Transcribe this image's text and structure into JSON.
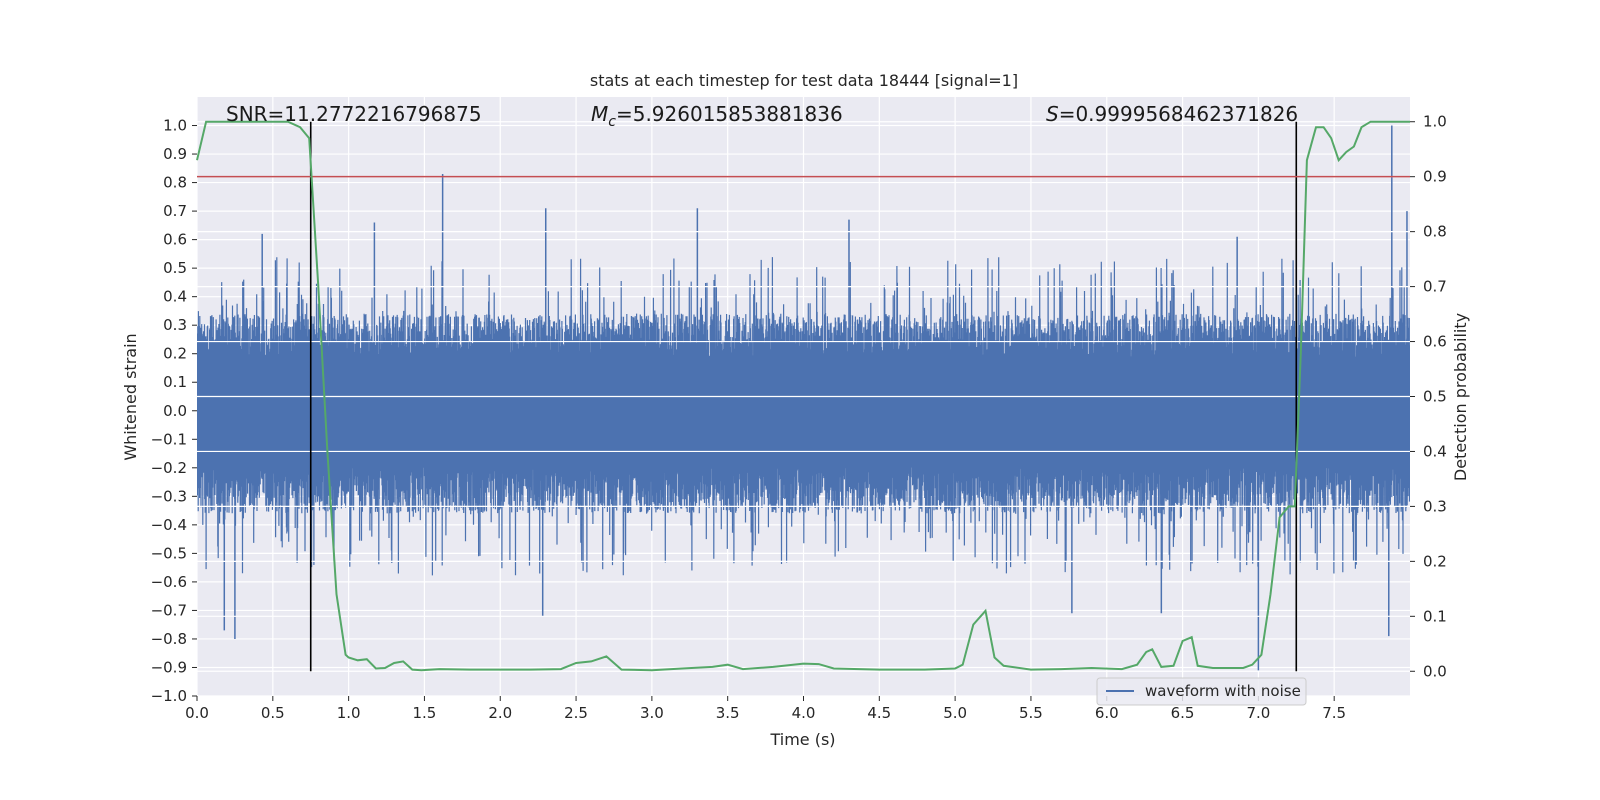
{
  "chart_data": {
    "type": "line",
    "title": "stats at each timestep for test data 18444 [signal=1]",
    "xlabel": "Time (s)",
    "ylabel": "Whitened strain",
    "y2label": "Detection probability",
    "xlim": [
      0,
      8
    ],
    "ylim": [
      -1.0,
      1.1
    ],
    "y2lim": [
      -0.045,
      1.045
    ],
    "xticks": [
      "0.0",
      "0.5",
      "1.0",
      "1.5",
      "2.0",
      "2.5",
      "3.0",
      "3.5",
      "4.0",
      "4.5",
      "5.0",
      "5.5",
      "6.0",
      "6.5",
      "7.0",
      "7.5"
    ],
    "yticks": [
      "-1.0",
      "-0.9",
      "-0.8",
      "-0.7",
      "-0.6",
      "-0.5",
      "-0.4",
      "-0.3",
      "-0.2",
      "-0.1",
      "0.0",
      "0.1",
      "0.2",
      "0.3",
      "0.4",
      "0.5",
      "0.6",
      "0.7",
      "0.8",
      "0.9",
      "1.0"
    ],
    "y2ticks": [
      "0.0",
      "0.1",
      "0.2",
      "0.3",
      "0.4",
      "0.5",
      "0.6",
      "0.7",
      "0.8",
      "0.9",
      "1.0"
    ],
    "grid": true,
    "legend": {
      "position": "lower-right",
      "entries": [
        "waveform with noise"
      ]
    },
    "annotations": {
      "snr": "SNR=11.2772216796875",
      "mc_symbol": "M",
      "mc_sub": "c",
      "mc_value": "=5.926015853881836",
      "s_symbol": "S",
      "s_value": "=0.9999568462371826"
    },
    "threshold": {
      "axis": "right",
      "value": 0.9,
      "color": "#c44e52"
    },
    "vertical_markers": [
      0.75,
      7.25
    ],
    "series": [
      {
        "name": "waveform with noise",
        "axis": "left",
        "color": "#4c72b0",
        "envelope_typical": [
          0.34,
          -0.36
        ],
        "envelope_max": [
          1.0,
          -0.91
        ],
        "peaks": [
          {
            "x": 0.43,
            "y": 0.62
          },
          {
            "x": 1.62,
            "y": 0.83
          },
          {
            "x": 1.17,
            "y": 0.66
          },
          {
            "x": 2.3,
            "y": 0.71
          },
          {
            "x": 3.3,
            "y": 0.71
          },
          {
            "x": 4.3,
            "y": 0.67
          },
          {
            "x": 7.88,
            "y": 1.0
          },
          {
            "x": 7.98,
            "y": 0.7
          },
          {
            "x": 6.86,
            "y": 0.61
          },
          {
            "x": 0.18,
            "y": -0.77
          },
          {
            "x": 0.25,
            "y": -0.8
          },
          {
            "x": 2.28,
            "y": -0.72
          },
          {
            "x": 5.77,
            "y": -0.71
          },
          {
            "x": 6.36,
            "y": -0.71
          },
          {
            "x": 7.0,
            "y": -0.91
          },
          {
            "x": 7.86,
            "y": -0.79
          }
        ]
      },
      {
        "name": "Detection probability",
        "axis": "right",
        "color": "#55a868",
        "x": [
          0,
          0.06,
          0.1,
          0.2,
          0.3,
          0.4,
          0.5,
          0.6,
          0.68,
          0.74,
          0.8,
          0.86,
          0.92,
          0.98,
          1.0,
          1.06,
          1.12,
          1.18,
          1.24,
          1.3,
          1.36,
          1.42,
          1.48,
          1.6,
          1.8,
          2.0,
          2.2,
          2.4,
          2.5,
          2.6,
          2.7,
          2.8,
          3.0,
          3.2,
          3.4,
          3.5,
          3.6,
          3.8,
          4.0,
          4.1,
          4.2,
          4.5,
          4.8,
          5.0,
          5.05,
          5.12,
          5.2,
          5.26,
          5.32,
          5.5,
          5.7,
          5.9,
          6.1,
          6.2,
          6.26,
          6.3,
          6.36,
          6.44,
          6.5,
          6.56,
          6.6,
          6.7,
          6.9,
          6.96,
          7.02,
          7.08,
          7.14,
          7.2,
          7.24,
          7.28,
          7.32,
          7.38,
          7.43,
          7.48,
          7.53,
          7.58,
          7.63,
          7.68,
          7.74,
          7.8,
          7.9,
          8.0
        ],
        "y": [
          0.93,
          1.0,
          1.0,
          1.0,
          1.0,
          1.0,
          1.0,
          1.0,
          0.99,
          0.97,
          0.7,
          0.4,
          0.14,
          0.03,
          0.025,
          0.02,
          0.022,
          0.005,
          0.006,
          0.015,
          0.018,
          0.003,
          0.002,
          0.004,
          0.003,
          0.003,
          0.003,
          0.004,
          0.015,
          0.018,
          0.027,
          0.003,
          0.002,
          0.005,
          0.008,
          0.012,
          0.004,
          0.008,
          0.014,
          0.013,
          0.005,
          0.003,
          0.003,
          0.005,
          0.012,
          0.085,
          0.11,
          0.025,
          0.01,
          0.003,
          0.004,
          0.006,
          0.004,
          0.012,
          0.035,
          0.04,
          0.008,
          0.01,
          0.055,
          0.062,
          0.01,
          0.006,
          0.006,
          0.012,
          0.03,
          0.14,
          0.28,
          0.3,
          0.3,
          0.58,
          0.93,
          0.99,
          0.99,
          0.97,
          0.93,
          0.945,
          0.955,
          0.99,
          1.0,
          1.0,
          1.0,
          1.0
        ]
      }
    ]
  }
}
